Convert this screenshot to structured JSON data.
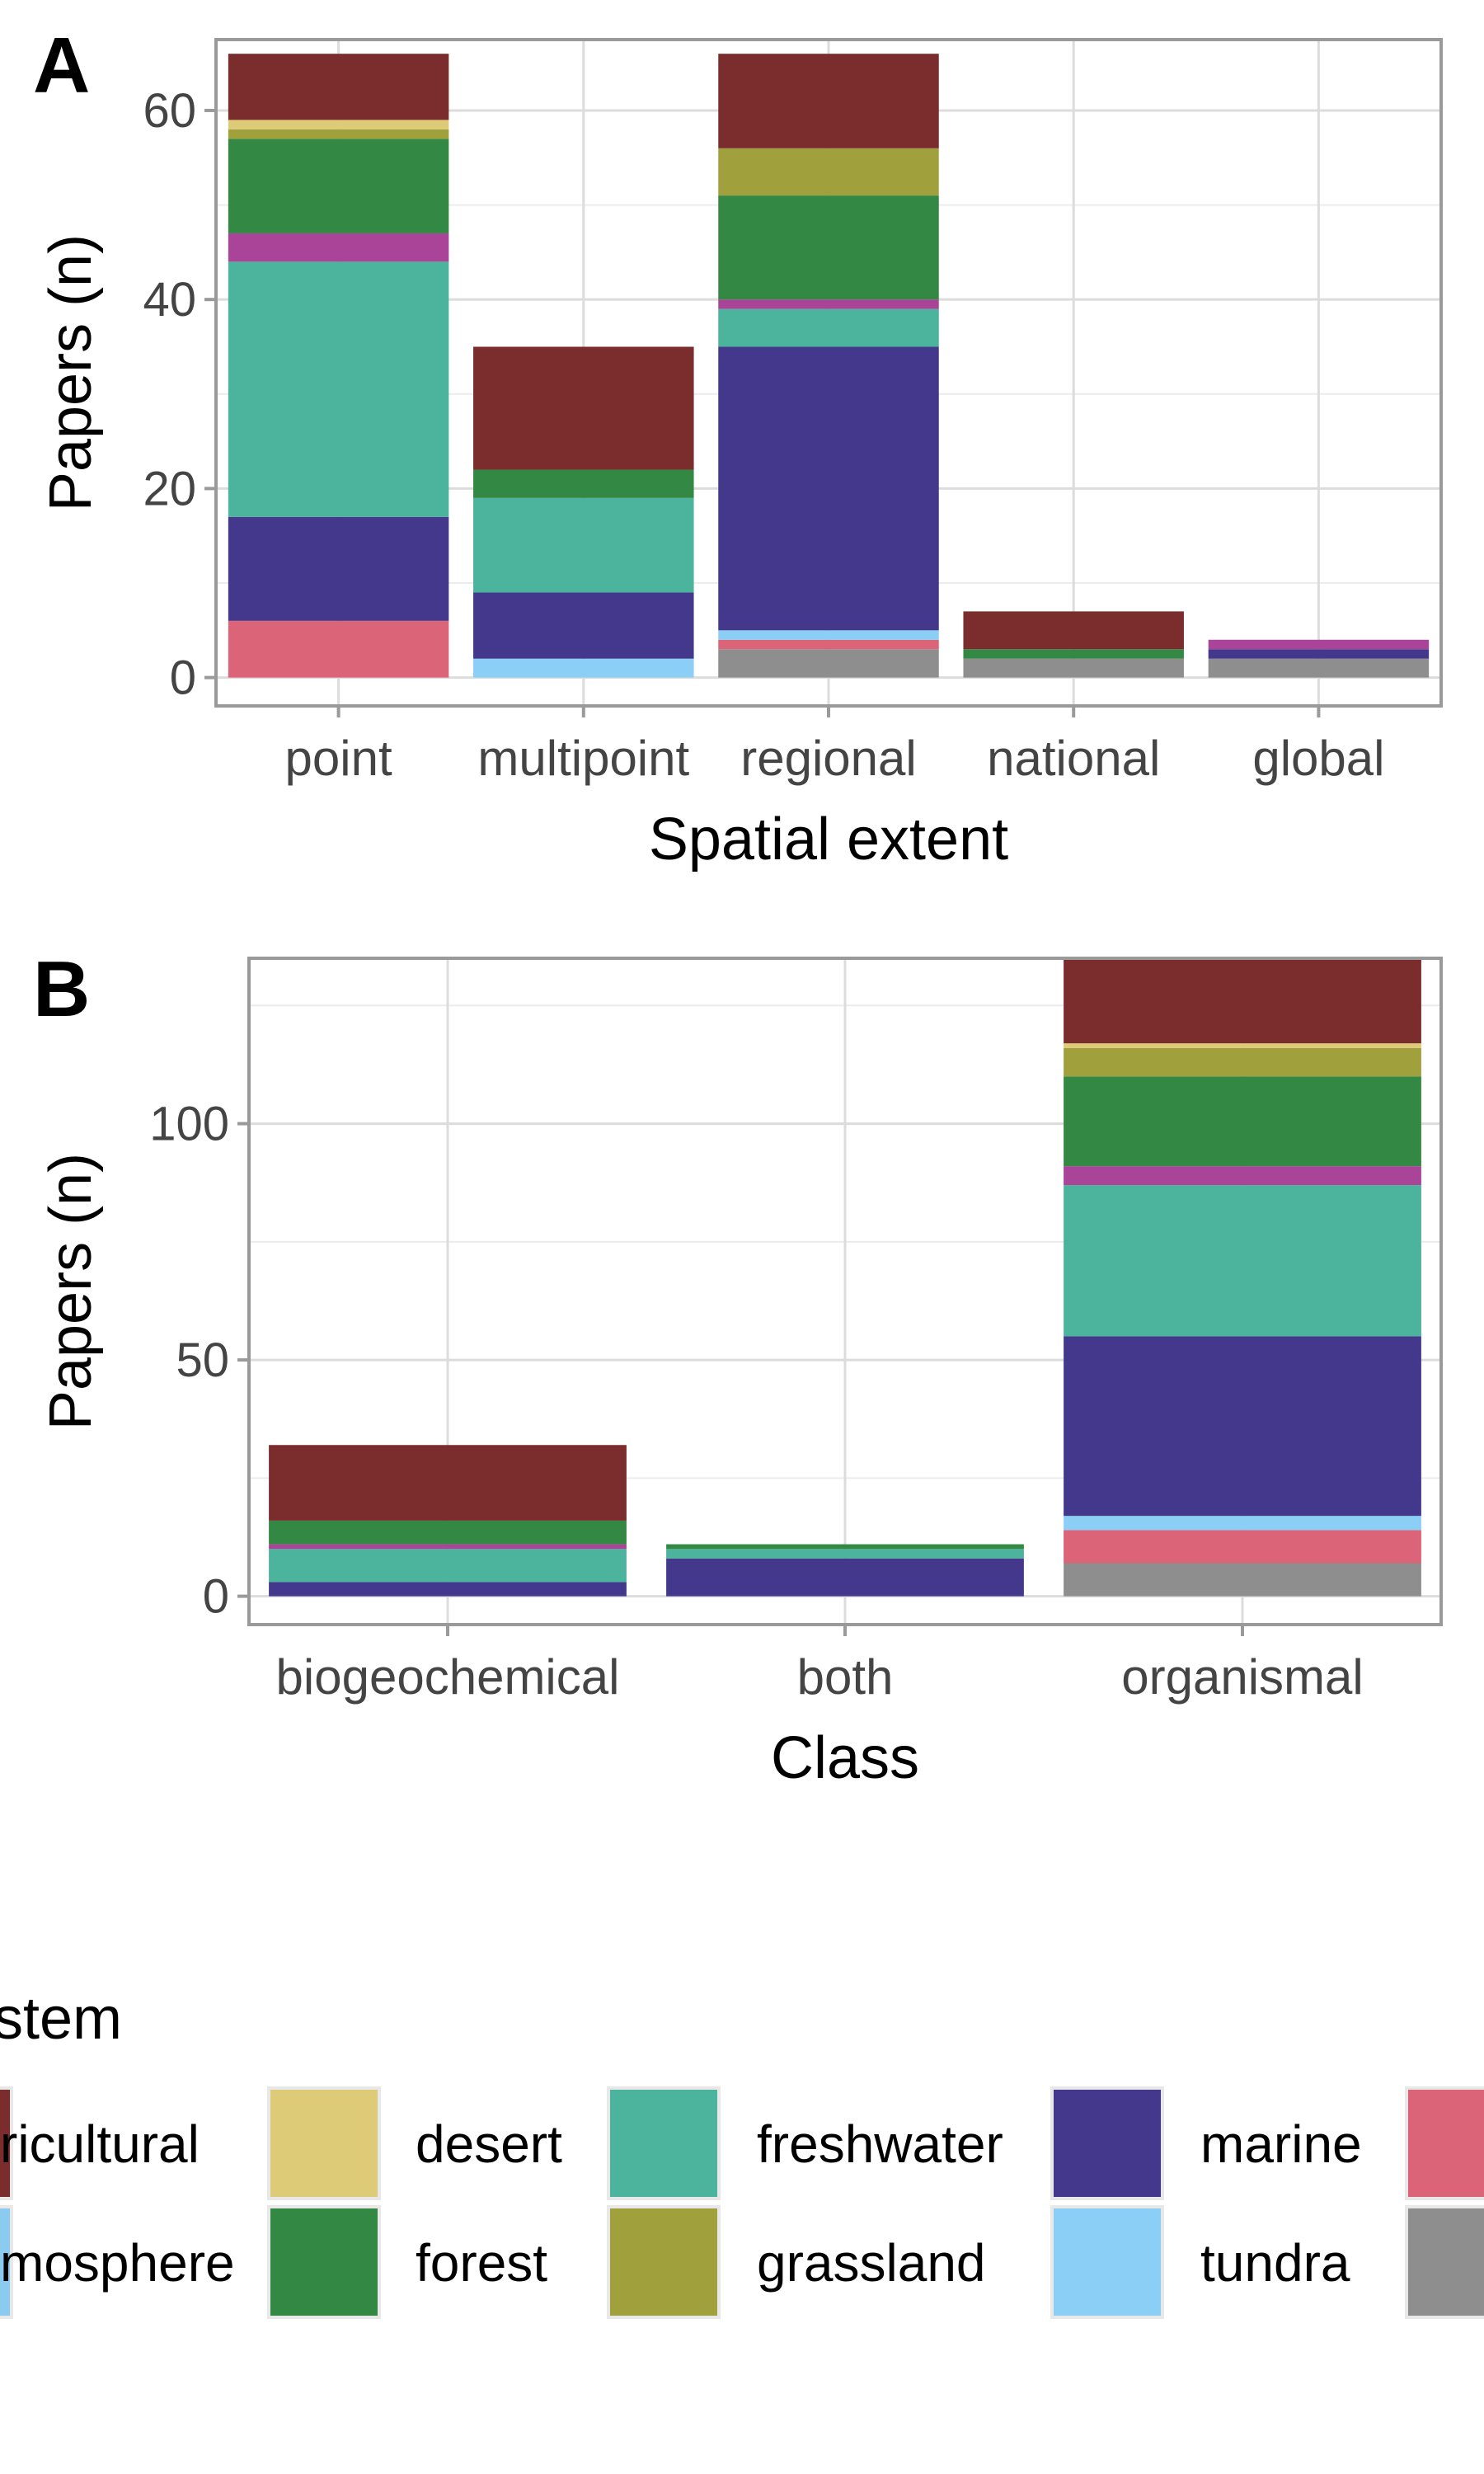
{
  "legend": {
    "title_visible": "stem",
    "items": [
      {
        "label_visible": "ricultural",
        "color": "#7B2C2C"
      },
      {
        "label_visible": "mosphere",
        "color": "#8BCBF0"
      },
      {
        "label_visible": "desert",
        "color": "#DDCB77"
      },
      {
        "label_visible": "forest",
        "color": "#338844"
      },
      {
        "label_visible": "freshwater",
        "color": "#4CB39C"
      },
      {
        "label_visible": "grassland",
        "color": "#A0A03C"
      },
      {
        "label_visible": "marine",
        "color": "#44388C"
      },
      {
        "label_visible": "tundra",
        "color": "#8BCFF7"
      },
      {
        "label_visible": "",
        "color": "#DC6478"
      },
      {
        "label_visible": "",
        "color": "#8E8E8E"
      }
    ]
  },
  "colors": {
    "agricultural": "#7B2C2C",
    "desert": "#DDCB77",
    "forest": "#338844",
    "mixed": "#AA4499",
    "freshwater": "#4CB39C",
    "marine": "#44388C",
    "tundra": "#8BCFF7",
    "urban": "#DC6478",
    "other": "#8E8E8E",
    "grassland": "#A0A03C"
  },
  "chart_data": [
    {
      "type": "bar",
      "stacked": true,
      "panel_label": "A",
      "title": "",
      "xlabel": "Spatial extent",
      "ylabel": "Papers (n)",
      "ylim": [
        -3,
        67.5
      ],
      "yticks": [
        0,
        20,
        40,
        60
      ],
      "grid": true,
      "categories": [
        "point",
        "multipoint",
        "regional",
        "national",
        "global"
      ],
      "stack_order": [
        "other",
        "urban",
        "tundra",
        "marine",
        "freshwater",
        "mixed",
        "forest",
        "grassland",
        "desert",
        "agricultural"
      ],
      "series": [
        {
          "key": "other",
          "values": [
            0,
            0,
            3,
            2,
            2
          ]
        },
        {
          "key": "urban",
          "values": [
            6,
            0,
            1,
            0,
            0
          ]
        },
        {
          "key": "tundra",
          "values": [
            0,
            2,
            1,
            0,
            0
          ]
        },
        {
          "key": "marine",
          "values": [
            11,
            7,
            30,
            0,
            1
          ]
        },
        {
          "key": "freshwater",
          "values": [
            27,
            10,
            4,
            0,
            0
          ]
        },
        {
          "key": "mixed",
          "values": [
            3,
            0,
            1,
            0,
            1
          ]
        },
        {
          "key": "forest",
          "values": [
            10,
            3,
            11,
            1,
            0
          ]
        },
        {
          "key": "grassland",
          "values": [
            1,
            0,
            5,
            0,
            0
          ]
        },
        {
          "key": "desert",
          "values": [
            1,
            0,
            0,
            0,
            0
          ]
        },
        {
          "key": "agricultural",
          "values": [
            7,
            13,
            10,
            4,
            0
          ]
        }
      ]
    },
    {
      "type": "bar",
      "stacked": true,
      "panel_label": "B",
      "title": "",
      "xlabel": "Class",
      "ylabel": "Papers (n)",
      "ylim": [
        -6,
        135
      ],
      "yticks": [
        0,
        50,
        100
      ],
      "grid": true,
      "categories": [
        "biogeochemical",
        "both",
        "organismal"
      ],
      "stack_order": [
        "other",
        "urban",
        "tundra",
        "marine",
        "freshwater",
        "mixed",
        "forest",
        "grassland",
        "desert",
        "agricultural"
      ],
      "series": [
        {
          "key": "other",
          "values": [
            0,
            0,
            7
          ]
        },
        {
          "key": "urban",
          "values": [
            0,
            0,
            7
          ]
        },
        {
          "key": "tundra",
          "values": [
            0,
            0,
            3
          ]
        },
        {
          "key": "marine",
          "values": [
            3,
            8,
            38
          ]
        },
        {
          "key": "freshwater",
          "values": [
            7,
            2,
            32
          ]
        },
        {
          "key": "mixed",
          "values": [
            1,
            0,
            4
          ]
        },
        {
          "key": "forest",
          "values": [
            5,
            1,
            19
          ]
        },
        {
          "key": "grassland",
          "values": [
            0,
            0,
            6
          ]
        },
        {
          "key": "desert",
          "values": [
            0,
            0,
            1
          ]
        },
        {
          "key": "agricultural",
          "values": [
            16,
            0,
            18
          ]
        }
      ]
    }
  ]
}
